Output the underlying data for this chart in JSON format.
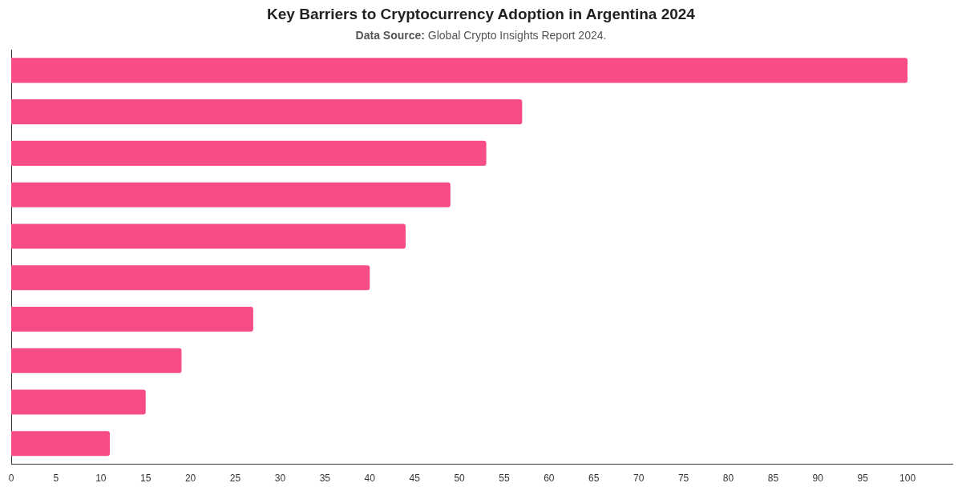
{
  "chart_data": {
    "type": "bar",
    "orientation": "horizontal",
    "title": "Key Barriers to Cryptocurrency Adoption in Argentina 2024",
    "subtitle": "Data Source: Global Crypto Insights Report 2024.",
    "categories": [
      null,
      null,
      null,
      null,
      null,
      null,
      null,
      null,
      null,
      null
    ],
    "values": [
      100,
      57,
      53,
      49,
      44,
      40,
      27,
      19,
      15,
      11
    ],
    "color": "#f84c86",
    "xlim": [
      0,
      105
    ],
    "xticks": [
      0,
      5,
      10,
      15,
      20,
      25,
      30,
      35,
      40,
      45,
      50,
      55,
      60,
      65,
      70,
      75,
      80,
      85,
      90,
      95,
      100
    ],
    "grid": false,
    "legend": false
  }
}
